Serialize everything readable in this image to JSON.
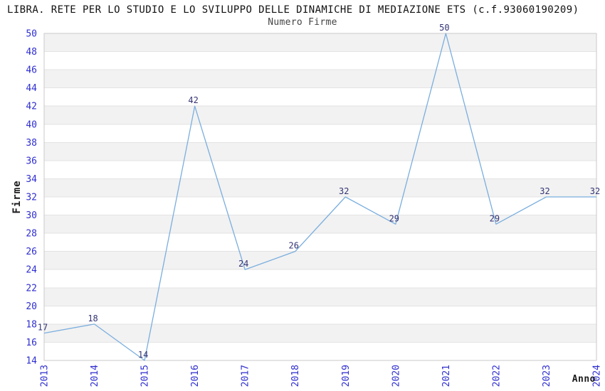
{
  "chart_data": {
    "type": "line",
    "title": "LIBRA. RETE PER LO STUDIO E LO SVILUPPO DELLE DINAMICHE DI MEDIAZIONE ETS (c.f.93060190209)",
    "subtitle": "Numero Firme",
    "xlabel": "Anno",
    "ylabel": "Firme",
    "categories": [
      "2013",
      "2014",
      "2015",
      "2016",
      "2017",
      "2018",
      "2019",
      "2020",
      "2021",
      "2022",
      "2023",
      "2024"
    ],
    "values": [
      17,
      18,
      14,
      42,
      24,
      26,
      32,
      29,
      50,
      29,
      32,
      32
    ],
    "ylim": [
      14,
      50
    ],
    "ytick_step": 2,
    "grid": "horizontal-bands-alternating",
    "legend": "none",
    "colors": {
      "line": "#7aaede",
      "tick_label": "#2e2ed0",
      "data_label": "#333375",
      "band": "#f2f2f2",
      "gridline": "#e3e3e3",
      "plot_border": "#c9c9c9"
    }
  }
}
